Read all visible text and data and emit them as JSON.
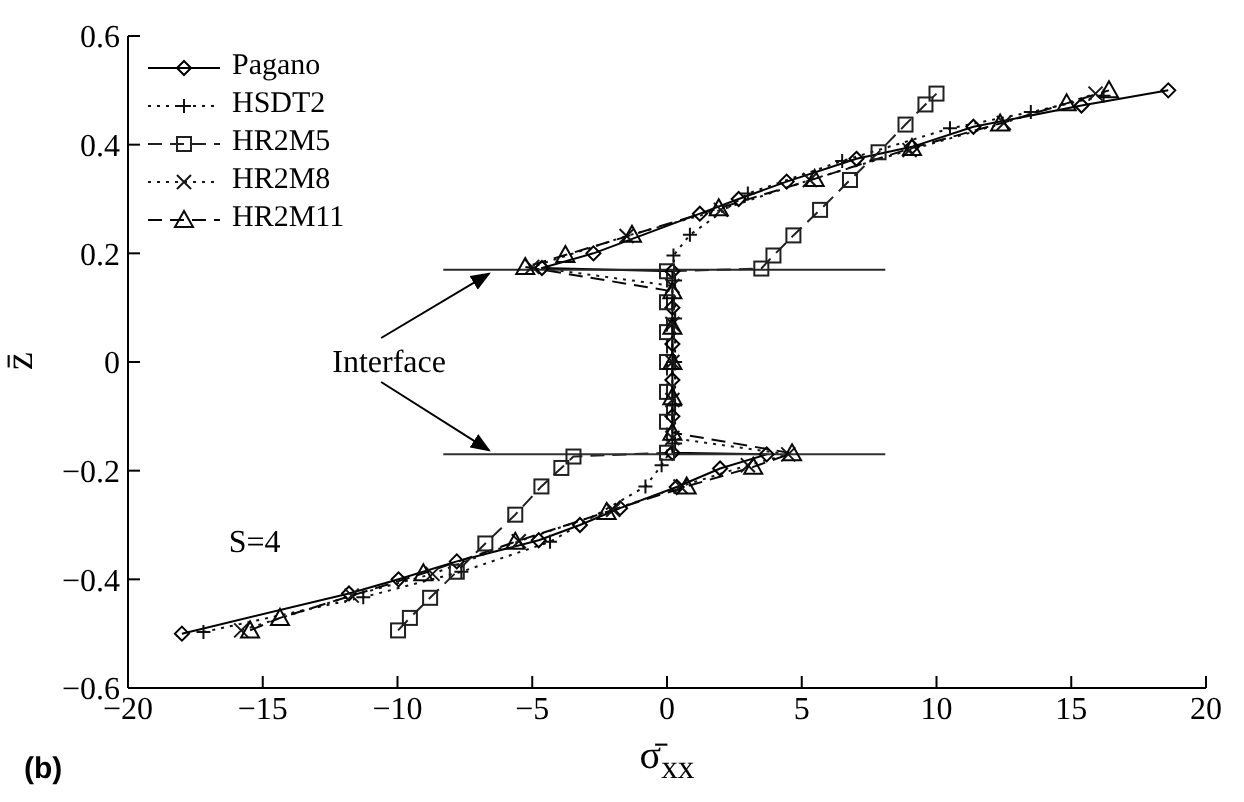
{
  "chart_data": {
    "type": "line",
    "xlabel": "σ̄$_{xx}$",
    "ylabel": "z̄",
    "xlim": [
      -20,
      20
    ],
    "xticks": [
      {
        "value": -20,
        "label": "−20"
      },
      {
        "value": -15,
        "label": "−15"
      },
      {
        "value": -10,
        "label": "−10"
      },
      {
        "value": -5,
        "label": "−5"
      },
      0,
      5,
      10,
      15,
      20
    ],
    "ylim": [
      -0.6,
      0.6
    ],
    "yticks": [
      {
        "value": -0.6,
        "label": "−0.6"
      },
      {
        "value": -0.4,
        "label": "−0.4"
      },
      {
        "value": -0.2,
        "label": "−0.2"
      },
      0,
      0.2,
      0.4,
      0.6
    ],
    "legend": "top left",
    "grid": false,
    "annotations": [
      {
        "text": "Interface",
        "x": -6.6,
        "y": 0.17
      },
      "S=4",
      "(b)"
    ],
    "series": [
      {
        "name": "Pagano",
        "color": "#000000",
        "marker": "diamond",
        "line_style": "solid",
        "x": [
          -18,
          -11.8,
          -9.96,
          -7.8,
          -4.76,
          -3.23,
          -1.74,
          0.36,
          1.97,
          3.7,
          0.2,
          0.2,
          0.2,
          0.2,
          0.2,
          0.2,
          -4.64,
          -2.73,
          1.22,
          2.66,
          4.44,
          7.03,
          9.09,
          11.37,
          15.38,
          18.6
        ],
        "values": [
          -0.5,
          -0.426,
          -0.4,
          -0.367,
          -0.328,
          -0.3,
          -0.269,
          -0.23,
          -0.196,
          -0.17,
          -0.167,
          -0.1,
          -0.033,
          0.033,
          0.1,
          0.167,
          0.173,
          0.2,
          0.273,
          0.3,
          0.332,
          0.374,
          0.396,
          0.433,
          0.472,
          0.5
        ]
      },
      {
        "name": "HSDT2",
        "color": "#101010",
        "marker": "cross",
        "line_style": "dotted",
        "x": [
          -17.2,
          -11.27,
          -7.63,
          -4.34,
          -0.8,
          -0.2,
          0.3,
          0.3,
          0.3,
          0.3,
          0.3,
          0.24,
          0.85,
          3.0,
          6.5,
          10.5,
          13.5,
          16.2
        ],
        "values": [
          -0.497,
          -0.433,
          -0.386,
          -0.331,
          -0.229,
          -0.19,
          -0.15,
          -0.08,
          0,
          0.08,
          0.15,
          0.196,
          0.234,
          0.31,
          0.37,
          0.43,
          0.46,
          0.49
        ]
      },
      {
        "name": "HR2M5",
        "color": "#202020",
        "marker": "square",
        "line_style": "dashed",
        "x": [
          -9.98,
          -9.54,
          -8.79,
          -7.8,
          -6.74,
          -5.63,
          -4.66,
          -3.92,
          -3.47,
          0,
          0,
          0,
          0,
          0,
          0,
          0,
          3.5,
          3.95,
          4.69,
          5.68,
          6.79,
          7.85,
          8.85,
          9.59,
          10.0
        ],
        "values": [
          -0.494,
          -0.471,
          -0.434,
          -0.386,
          -0.334,
          -0.281,
          -0.229,
          -0.195,
          -0.174,
          -0.167,
          -0.11,
          -0.055,
          0,
          0.055,
          0.11,
          0.167,
          0.172,
          0.196,
          0.233,
          0.28,
          0.335,
          0.386,
          0.437,
          0.474,
          0.494
        ]
      },
      {
        "name": "HR2M8",
        "color": "#181818",
        "marker": "x",
        "line_style": "dotted",
        "x": [
          -15.8,
          -11.7,
          -8.7,
          -5.5,
          -2.0,
          0.5,
          3.0,
          4.5,
          0.2,
          0.2,
          0.2,
          0.2,
          0.2,
          -5.0,
          -1.5,
          2.0,
          5.3,
          9.0,
          12.5,
          15.9
        ],
        "values": [
          -0.494,
          -0.43,
          -0.39,
          -0.33,
          -0.272,
          -0.229,
          -0.19,
          -0.17,
          -0.14,
          -0.07,
          0,
          0.07,
          0.14,
          0.175,
          0.232,
          0.28,
          0.335,
          0.39,
          0.44,
          0.494
        ]
      },
      {
        "name": "HR2M11",
        "color": "#080808",
        "marker": "triangle",
        "line_style": "dashed",
        "x": [
          -15.47,
          -14.36,
          -9.04,
          -5.63,
          -2.24,
          0.73,
          3.2,
          4.64,
          0.2,
          0.2,
          0.2,
          0.2,
          0.2,
          -5.26,
          -3.77,
          -1.3,
          1.92,
          5.48,
          9.09,
          12.36,
          14.83,
          16.4
        ],
        "values": [
          -0.494,
          -0.471,
          -0.389,
          -0.331,
          -0.276,
          -0.229,
          -0.193,
          -0.168,
          -0.13,
          -0.065,
          0,
          0.065,
          0.13,
          0.175,
          0.197,
          0.234,
          0.283,
          0.337,
          0.394,
          0.439,
          0.476,
          0.5
        ]
      },
      {
        "color": "#282828",
        "marker": "none",
        "line_style": "solid",
        "x": [
          -8.3,
          8.1
        ],
        "values": [
          0.17,
          0.17
        ]
      },
      {
        "color": "#303030",
        "marker": "none",
        "line_style": "solid",
        "x": [
          -8.3,
          8.1
        ],
        "values": [
          -0.17,
          -0.17
        ]
      }
    ]
  }
}
